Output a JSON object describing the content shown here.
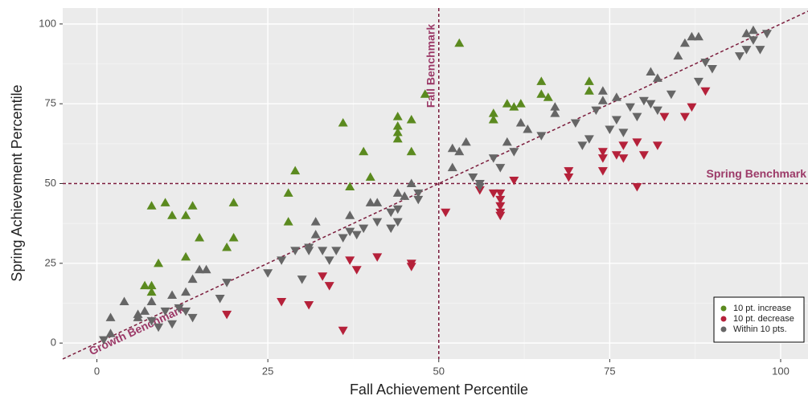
{
  "chart_data": {
    "type": "scatter",
    "x_label": "Fall Achievement Percentile",
    "y_label": "Spring Achievement Percentile",
    "xlim": [
      -5,
      104
    ],
    "ylim": [
      -5,
      105
    ],
    "xticks": [
      0,
      25,
      50,
      75,
      100
    ],
    "yticks": [
      0,
      25,
      50,
      75,
      100
    ],
    "grid": true,
    "minor_grid": true,
    "legend_position": "bottom-right",
    "reference_lines": {
      "fall_benchmark": {
        "label": "Fall Benchmark",
        "x": 50
      },
      "spring_benchmark": {
        "label": "Spring Benchmark",
        "y": 50
      },
      "growth_benchmark": {
        "label": "Growth Benchmark",
        "slope": 1,
        "intercept": 0
      }
    },
    "series": [
      {
        "name": "10 pt. increase",
        "color": "#5b8a1f",
        "x": [
          8,
          10,
          11,
          13,
          14,
          15,
          9,
          13,
          7,
          8,
          8,
          20,
          20,
          19,
          29,
          28,
          28,
          37,
          36,
          39,
          40,
          44,
          44,
          44,
          44,
          46,
          46,
          48,
          53,
          58,
          58,
          60,
          61,
          62,
          65,
          65,
          66,
          72,
          72
        ],
        "y": [
          43,
          44,
          40,
          40,
          43,
          33,
          25,
          27,
          18,
          18,
          16,
          44,
          33,
          30,
          54,
          47,
          38,
          49,
          69,
          60,
          52,
          71,
          68,
          66,
          64,
          70,
          60,
          78,
          94,
          72,
          70,
          75,
          74,
          75,
          82,
          78,
          77,
          82,
          79
        ]
      },
      {
        "name": "10 pt. decrease",
        "color": "#b5213a",
        "x": [
          19,
          27,
          31,
          33,
          34,
          36,
          37,
          38,
          41,
          46,
          46,
          51,
          56,
          58,
          59,
          59,
          59,
          59,
          59,
          61,
          69,
          69,
          74,
          74,
          74,
          76,
          77,
          77,
          79,
          80,
          79,
          82,
          83,
          86,
          87,
          89
        ],
        "y": [
          9,
          13,
          12,
          21,
          18,
          4,
          26,
          23,
          27,
          25,
          24,
          41,
          48,
          47,
          47,
          45,
          43,
          41,
          40,
          51,
          54,
          52,
          60,
          58,
          54,
          59,
          62,
          58,
          63,
          59,
          49,
          62,
          71,
          71,
          74,
          79
        ]
      },
      {
        "name": "Within 10 pts.",
        "color": "#666666",
        "x": [
          1,
          2,
          2,
          4,
          6,
          6,
          7,
          8,
          8,
          9,
          10,
          11,
          11,
          12,
          13,
          13,
          14,
          14,
          15,
          16,
          18,
          19,
          25,
          27,
          29,
          30,
          31,
          31,
          32,
          32,
          33,
          34,
          35,
          36,
          37,
          37,
          38,
          39,
          40,
          41,
          41,
          43,
          43,
          44,
          44,
          44,
          45,
          46,
          47,
          47,
          52,
          52,
          53,
          54,
          55,
          56,
          56,
          58,
          59,
          60,
          61,
          62,
          63,
          65,
          67,
          67,
          70,
          71,
          72,
          73,
          74,
          74,
          75,
          76,
          76,
          77,
          78,
          79,
          80,
          81,
          81,
          82,
          82,
          84,
          85,
          86,
          87,
          88,
          88,
          89,
          90,
          94,
          95,
          95,
          96,
          97,
          98,
          96
        ],
        "y": [
          1,
          3,
          8,
          13,
          9,
          8,
          10,
          13,
          7,
          5,
          10,
          15,
          6,
          11,
          16,
          10,
          20,
          8,
          23,
          23,
          14,
          19,
          22,
          26,
          29,
          20,
          29,
          30,
          34,
          38,
          29,
          26,
          29,
          33,
          40,
          35,
          34,
          36,
          44,
          44,
          38,
          36,
          41,
          47,
          42,
          38,
          46,
          50,
          47,
          45,
          61,
          55,
          60,
          63,
          52,
          50,
          49,
          58,
          55,
          63,
          60,
          69,
          67,
          65,
          74,
          72,
          69,
          62,
          64,
          73,
          79,
          76,
          67,
          77,
          70,
          66,
          74,
          71,
          76,
          85,
          75,
          73,
          83,
          78,
          90,
          94,
          96,
          96,
          82,
          88,
          86,
          90,
          97,
          92,
          95,
          92,
          97,
          98
        ]
      }
    ]
  }
}
